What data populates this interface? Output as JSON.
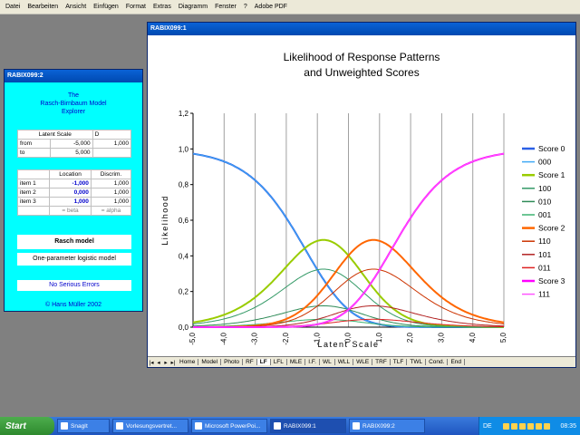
{
  "menu": [
    "Datei",
    "Bearbeiten",
    "Ansicht",
    "Einfügen",
    "Format",
    "Extras",
    "Diagramm",
    "Fenster",
    "?",
    "Adobe PDF"
  ],
  "sheet2": {
    "title": "RABIX099:2",
    "explorer_title": [
      "The",
      "Rasch-Birnbaum Model",
      "Explorer"
    ],
    "latent": {
      "headers": [
        "Latent Scale",
        "D"
      ],
      "rows": [
        {
          "label": "from",
          "value": "-5,000",
          "d": "1,000"
        },
        {
          "label": "to",
          "value": "5,000",
          "d": ""
        }
      ]
    },
    "items": {
      "headers": [
        "",
        "Location",
        "Discrim."
      ],
      "rows": [
        {
          "label": "item 1",
          "location": "-1,000",
          "discrim": "1,000"
        },
        {
          "label": "item 2",
          "location": "0,000",
          "discrim": "1,000"
        },
        {
          "label": "item 3",
          "location": "1,000",
          "discrim": "1,000"
        }
      ],
      "footer": [
        "= beta",
        "= alpha"
      ]
    },
    "model_name": "Rasch model",
    "model_desc": "One-parameter logistic model",
    "status": "No Serious Errors",
    "copyright": "© Hans Müller 2002"
  },
  "sheet1": {
    "title": "RABIX099:1",
    "tabs": [
      "Home",
      "Model",
      "Photo",
      "RF",
      "LF",
      "LFL",
      "MLE",
      "I.F.",
      "WL",
      "WLL",
      "WLE",
      "TRF",
      "TLF",
      "TWL",
      "Cond.",
      "End"
    ],
    "active_tab": "LF"
  },
  "chart_data": {
    "type": "line",
    "title": [
      "Likelihood of Response Patterns",
      "and Unweighted Scores"
    ],
    "xlabel": "Latent Scale",
    "ylabel": "Likelihood",
    "xlim": [
      -5,
      5
    ],
    "ylim": [
      0,
      1.2
    ],
    "xticks": [
      "-5,0",
      "-4,0",
      "-3,0",
      "-2,0",
      "-1,0",
      "0,0",
      "1,0",
      "2,0",
      "3,0",
      "4,0",
      "5,0"
    ],
    "yticks": [
      "0,0",
      "0,2",
      "0,4",
      "0,6",
      "0,8",
      "1,0",
      "1,2"
    ],
    "grid": "vertical",
    "legend_position": "right",
    "item_locations": [
      -1,
      0,
      1
    ],
    "series": [
      {
        "name": "Score 0",
        "color": "#2a5fe6",
        "pattern": "000",
        "width": 2
      },
      {
        "name": "000",
        "color": "#3fa9f5",
        "pattern": "000",
        "width": 1
      },
      {
        "name": "Score 1",
        "color": "#99cc00",
        "pattern": "score1",
        "width": 2
      },
      {
        "name": "100",
        "color": "#339966",
        "pattern": "100",
        "width": 1
      },
      {
        "name": "010",
        "color": "#2e8b57",
        "pattern": "010",
        "width": 1
      },
      {
        "name": "001",
        "color": "#3cb371",
        "pattern": "001",
        "width": 1
      },
      {
        "name": "Score 2",
        "color": "#ff6600",
        "pattern": "score2",
        "width": 2
      },
      {
        "name": "110",
        "color": "#cc3300",
        "pattern": "110",
        "width": 1
      },
      {
        "name": "101",
        "color": "#b22222",
        "pattern": "101",
        "width": 1
      },
      {
        "name": "011",
        "color": "#dd2222",
        "pattern": "011",
        "width": 1
      },
      {
        "name": "Score 3",
        "color": "#ff00ff",
        "pattern": "111",
        "width": 2
      },
      {
        "name": "111",
        "color": "#ff55ff",
        "pattern": "111",
        "width": 1
      }
    ]
  },
  "taskbar": {
    "start": "Start",
    "items": [
      {
        "label": "SnagIt",
        "active": false
      },
      {
        "label": "Vorlesungsvertret...",
        "active": false
      },
      {
        "label": "Microsoft PowerPoi...",
        "active": false
      },
      {
        "label": "RABIX099:1",
        "active": true
      },
      {
        "label": "RABIX099:2",
        "active": false
      }
    ],
    "lang": "DE",
    "clock": "08:35"
  }
}
